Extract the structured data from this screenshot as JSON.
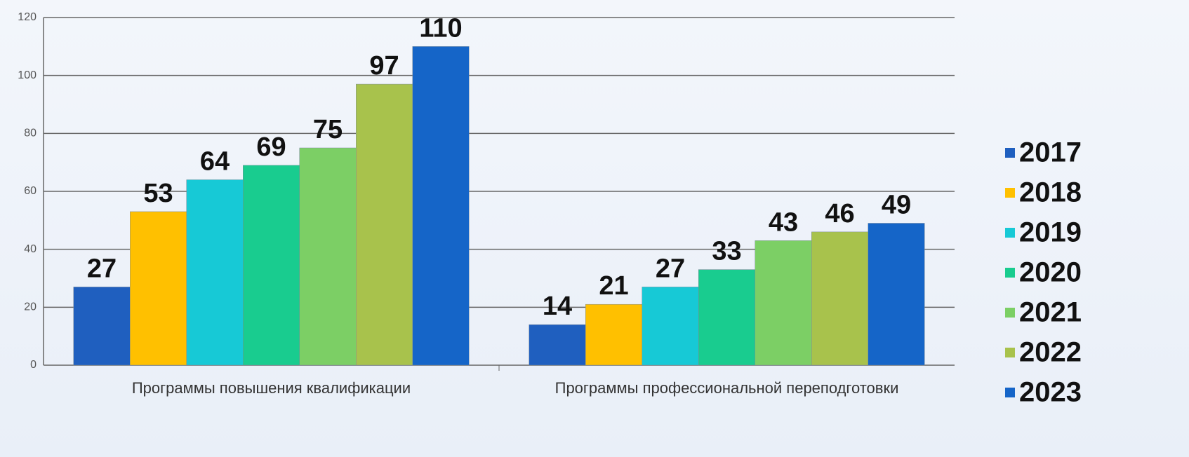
{
  "chart_data": {
    "type": "bar",
    "categories": [
      "Программы повышения квалификации",
      "Программы профессиональной переподготовки"
    ],
    "series": [
      {
        "name": "2017",
        "color": "#1f5fbf",
        "values": [
          27,
          14
        ]
      },
      {
        "name": "2018",
        "color": "#ffc000",
        "values": [
          53,
          21
        ]
      },
      {
        "name": "2019",
        "color": "#17c9d6",
        "values": [
          64,
          27
        ]
      },
      {
        "name": "2020",
        "color": "#19cc8f",
        "values": [
          69,
          33
        ]
      },
      {
        "name": "2021",
        "color": "#7ccf65",
        "values": [
          75,
          43
        ]
      },
      {
        "name": "2022",
        "color": "#a8c24c",
        "values": [
          97,
          46
        ]
      },
      {
        "name": "2023",
        "color": "#1565c8",
        "values": [
          110,
          49
        ]
      }
    ],
    "ylim": [
      0,
      120
    ],
    "yticks": [
      0,
      20,
      40,
      60,
      80,
      100,
      120
    ],
    "grid": true,
    "legend": "right"
  }
}
